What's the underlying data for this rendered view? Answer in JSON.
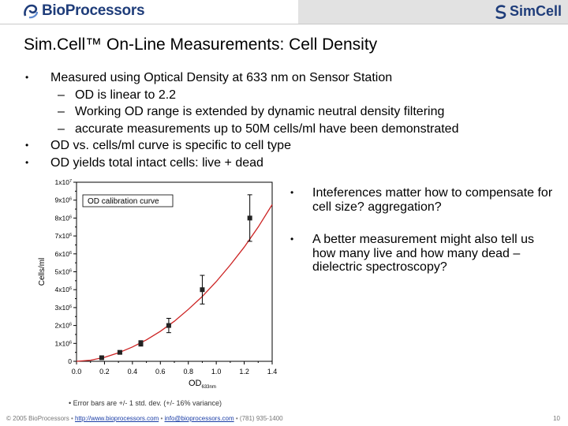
{
  "header": {
    "left_logo": "BioProcessors",
    "right_logo": "SimCell",
    "brand_color": "#1f3d7a",
    "right_band_color": "#e2e2e2"
  },
  "title": "Sim.Cell™ On-Line Measurements:  Cell Density",
  "bullets": [
    {
      "text": "Measured using Optical Density at 633 nm on Sensor Station",
      "sub": [
        "OD is linear to 2.2",
        "Working OD range is extended by dynamic neutral density filtering",
        "accurate measurements up to 50M cells/ml have been demonstrated"
      ]
    },
    {
      "text": "OD vs. cells/ml curve is specific to cell type",
      "sub": []
    },
    {
      "text": "OD yields total intact cells:  live + dead",
      "sub": []
    }
  ],
  "right_bullets": [
    "Inteferences matter how to compensate for cell size? aggregation?",
    "A better measurement might also tell us how many live and how many dead – dielectric spectroscopy?"
  ],
  "chart_data": {
    "type": "scatter",
    "legend": "OD calibration curve",
    "legend_placement": "top-left",
    "xlabel": "OD",
    "xlabel_sub": "633nm",
    "ylabel": "Cells/ml",
    "xlim": [
      0.0,
      1.4
    ],
    "ylim": [
      0,
      10000000
    ],
    "x_ticks": [
      "0.0",
      "0.2",
      "0.4",
      "0.6",
      "0.8",
      "1.0",
      "1.2",
      "1.4"
    ],
    "y_ticks": [
      {
        "value": 0,
        "mant": "0",
        "exp": ""
      },
      {
        "value": 1000000,
        "mant": "1x10",
        "exp": "6"
      },
      {
        "value": 2000000,
        "mant": "2x10",
        "exp": "6"
      },
      {
        "value": 3000000,
        "mant": "3x10",
        "exp": "6"
      },
      {
        "value": 4000000,
        "mant": "4x10",
        "exp": "6"
      },
      {
        "value": 5000000,
        "mant": "5x10",
        "exp": "6"
      },
      {
        "value": 6000000,
        "mant": "6x10",
        "exp": "6"
      },
      {
        "value": 7000000,
        "mant": "7x10",
        "exp": "6"
      },
      {
        "value": 8000000,
        "mant": "8x10",
        "exp": "6"
      },
      {
        "value": 9000000,
        "mant": "9x10",
        "exp": "6"
      },
      {
        "value": 10000000,
        "mant": "1x10",
        "exp": "7"
      }
    ],
    "points": [
      {
        "x": 0.18,
        "y": 200000,
        "err": 60000
      },
      {
        "x": 0.31,
        "y": 500000,
        "err": 80000
      },
      {
        "x": 0.46,
        "y": 1000000,
        "err": 150000
      },
      {
        "x": 0.66,
        "y": 2000000,
        "err": 400000
      },
      {
        "x": 0.9,
        "y": 4000000,
        "err": 800000
      },
      {
        "x": 1.24,
        "y": 8000000,
        "err": 1300000
      }
    ],
    "curve": [
      [
        0.0,
        0
      ],
      [
        0.1,
        60000
      ],
      [
        0.2,
        220000
      ],
      [
        0.3,
        470000
      ],
      [
        0.4,
        800000
      ],
      [
        0.5,
        1200000
      ],
      [
        0.6,
        1680000
      ],
      [
        0.7,
        2240000
      ],
      [
        0.8,
        2900000
      ],
      [
        0.9,
        3620000
      ],
      [
        1.0,
        4450000
      ],
      [
        1.1,
        5380000
      ],
      [
        1.2,
        6380000
      ],
      [
        1.3,
        7500000
      ],
      [
        1.4,
        8750000
      ]
    ],
    "color": "#cc2222"
  },
  "note": "• Error bars are +/- 1 std. dev. (+/- 16% variance)",
  "footer": {
    "copyright": "© 2005 BioProcessors ",
    "sep": "• ",
    "url": "http://www.bioprocessors.com",
    "email": "info@bioprocessors.com",
    "phone": "• (781) 935-1400",
    "page": "10"
  }
}
